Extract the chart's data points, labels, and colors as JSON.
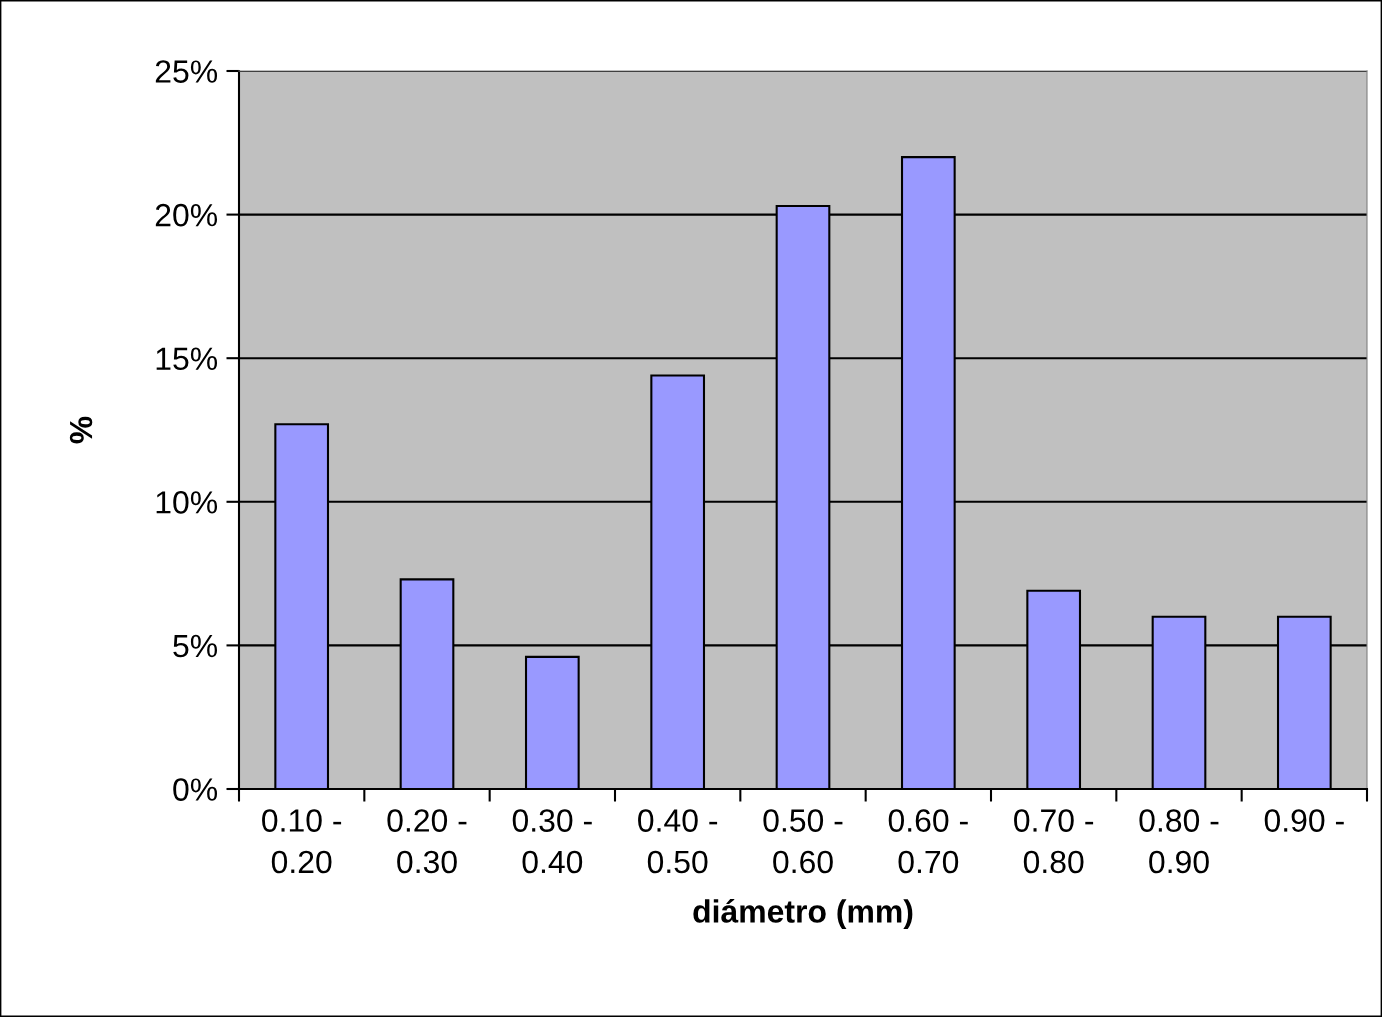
{
  "chart_data": {
    "type": "bar",
    "xlabel": "diámetro (mm)",
    "ylabel": "%",
    "categories": [
      "0.10 -\n0.20",
      "0.20 -\n0.30",
      "0.30 -\n0.40",
      "0.40 -\n0.50",
      "0.50 -\n0.60",
      "0.60 -\n0.70",
      "0.70 -\n0.80",
      "0.80 -\n0.90",
      "0.90 -"
    ],
    "values": [
      12.7,
      7.3,
      4.6,
      14.4,
      20.3,
      22.0,
      6.9,
      6.0,
      6.0
    ],
    "color": "#9999ff",
    "ylim": [
      0,
      25
    ],
    "yticks": [
      {
        "value": 0,
        "label": "0%"
      },
      {
        "value": 5,
        "label": "5%"
      },
      {
        "value": 10,
        "label": "10%"
      },
      {
        "value": 15,
        "label": "15%"
      },
      {
        "value": 20,
        "label": "20%"
      },
      {
        "value": 25,
        "label": "25%"
      }
    ],
    "grid": "y"
  }
}
